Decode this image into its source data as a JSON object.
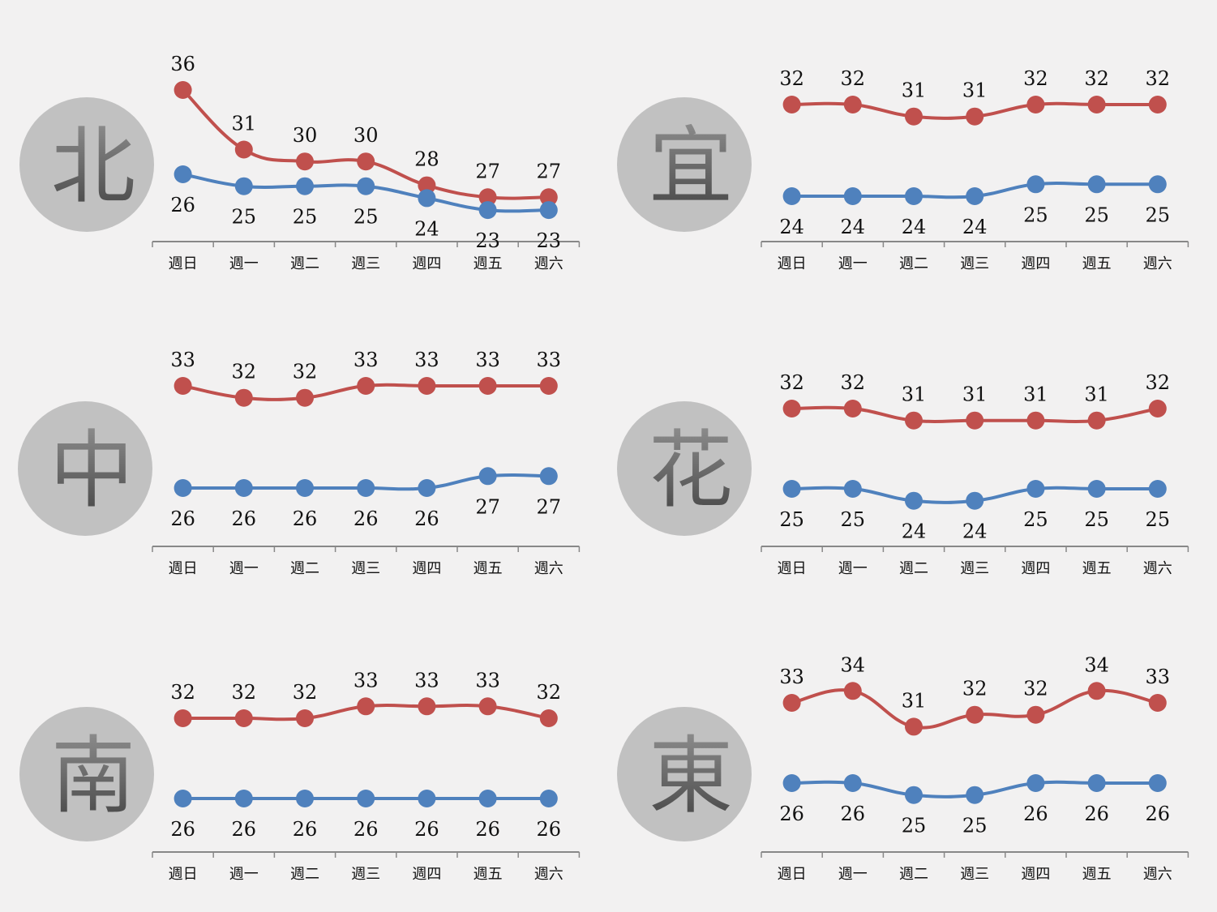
{
  "colors": {
    "high": "#c0504d",
    "low": "#4f81bd",
    "circle": "#c1c1c1",
    "char_top": "#909090",
    "char_bottom": "#454545",
    "axis": "#888888"
  },
  "chart_data": [
    {
      "type": "line",
      "region": "北",
      "categories": [
        "週日",
        "週一",
        "週二",
        "週三",
        "週四",
        "週五",
        "週六"
      ],
      "series": [
        {
          "values": [
            36,
            31,
            30,
            30,
            28,
            27,
            27
          ],
          "color": "#c0504d"
        },
        {
          "values": [
            26,
            25,
            25,
            25,
            24,
            23,
            23
          ],
          "color": "#4f81bd"
        }
      ]
    },
    {
      "type": "line",
      "region": "宜",
      "categories": [
        "週日",
        "週一",
        "週二",
        "週三",
        "週四",
        "週五",
        "週六"
      ],
      "series": [
        {
          "values": [
            32,
            32,
            31,
            31,
            32,
            32,
            32
          ],
          "color": "#c0504d"
        },
        {
          "values": [
            24,
            24,
            24,
            24,
            25,
            25,
            25
          ],
          "color": "#4f81bd"
        }
      ]
    },
    {
      "type": "line",
      "region": "中",
      "categories": [
        "週日",
        "週一",
        "週二",
        "週三",
        "週四",
        "週五",
        "週六"
      ],
      "series": [
        {
          "values": [
            33,
            32,
            32,
            33,
            33,
            33,
            33
          ],
          "color": "#c0504d"
        },
        {
          "values": [
            26,
            26,
            26,
            26,
            26,
            27,
            27
          ],
          "color": "#4f81bd"
        }
      ]
    },
    {
      "type": "line",
      "region": "花",
      "categories": [
        "週日",
        "週一",
        "週二",
        "週三",
        "週四",
        "週五",
        "週六"
      ],
      "series": [
        {
          "values": [
            32,
            32,
            31,
            31,
            31,
            31,
            32
          ],
          "color": "#c0504d"
        },
        {
          "values": [
            25,
            25,
            24,
            24,
            25,
            25,
            25
          ],
          "color": "#4f81bd"
        }
      ]
    },
    {
      "type": "line",
      "region": "南",
      "categories": [
        "週日",
        "週一",
        "週二",
        "週三",
        "週四",
        "週五",
        "週六"
      ],
      "series": [
        {
          "values": [
            32,
            32,
            32,
            33,
            33,
            33,
            32
          ],
          "color": "#c0504d"
        },
        {
          "values": [
            26,
            26,
            26,
            26,
            26,
            26,
            26
          ],
          "color": "#4f81bd"
        }
      ]
    },
    {
      "type": "line",
      "region": "東",
      "categories": [
        "週日",
        "週一",
        "週二",
        "週三",
        "週四",
        "週五",
        "週六"
      ],
      "series": [
        {
          "values": [
            33,
            34,
            31,
            32,
            32,
            34,
            33
          ],
          "color": "#c0504d"
        },
        {
          "values": [
            26,
            26,
            25,
            25,
            26,
            26,
            26
          ],
          "color": "#4f81bd"
        }
      ]
    }
  ]
}
